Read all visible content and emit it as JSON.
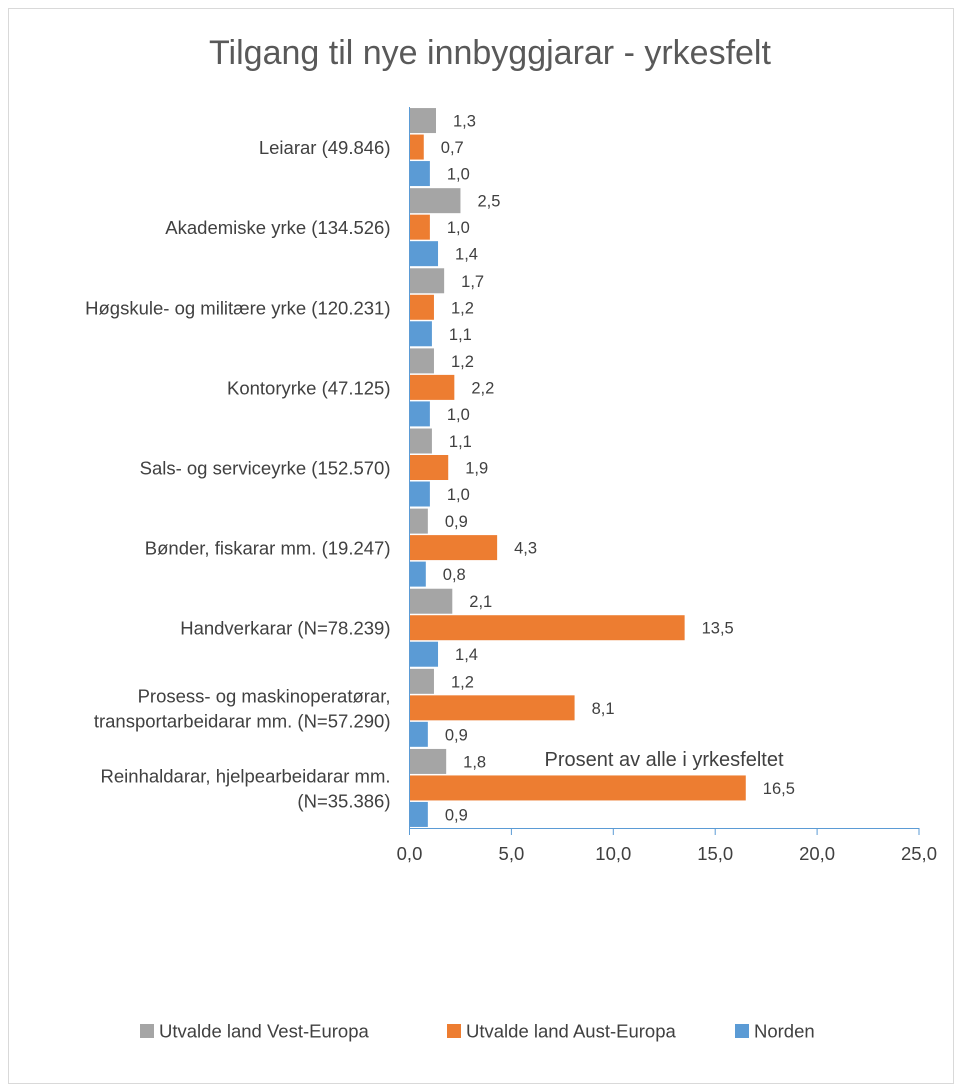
{
  "chart_data": {
    "type": "bar",
    "orientation": "horizontal",
    "title": "Tilgang til nye innbyggjarar - yrkesfelt",
    "xlabel": "Prosent av alle i yrkesfeltet",
    "ylabel": "",
    "xlim": [
      0,
      25
    ],
    "x_ticks": [
      "0,0",
      "5,0",
      "10,0",
      "15,0",
      "20,0",
      "25,0"
    ],
    "grid": false,
    "legend_position": "bottom",
    "categories": [
      [
        "Leiarar (49.846)"
      ],
      [
        "Akademiske yrke (134.526)"
      ],
      [
        "Høgskule- og militære yrke (120.231)"
      ],
      [
        "Kontoryrke (47.125)"
      ],
      [
        "Sals- og serviceyrke (152.570)"
      ],
      [
        "Bønder, fiskarar mm. (19.247)"
      ],
      [
        "Handverkarar (N=78.239)"
      ],
      [
        "Prosess- og maskinoperatørar,",
        "transportarbeidarar mm. (N=57.290)"
      ],
      [
        "Reinhaldarar, hjelpearbeidarar mm.",
        "(N=35.386)"
      ]
    ],
    "series": [
      {
        "name": "Utvalde land Vest-Europa",
        "color": "#a5a5a5",
        "values": [
          1.3,
          2.5,
          1.7,
          1.2,
          1.1,
          0.9,
          2.1,
          1.2,
          1.8
        ],
        "labels": [
          "1,3",
          "2,5",
          "1,7",
          "1,2",
          "1,1",
          "0,9",
          "2,1",
          "1,2",
          "1,8"
        ]
      },
      {
        "name": "Utvalde land Aust-Europa",
        "color": "#ed7d31",
        "values": [
          0.7,
          1.0,
          1.2,
          2.2,
          1.9,
          4.3,
          13.5,
          8.1,
          16.5
        ],
        "labels": [
          "0,7",
          "1,0",
          "1,2",
          "2,2",
          "1,9",
          "4,3",
          "13,5",
          "8,1",
          "16,5"
        ]
      },
      {
        "name": "Norden",
        "color": "#5b9bd5",
        "values": [
          1.0,
          1.4,
          1.1,
          1.0,
          1.0,
          0.8,
          1.4,
          0.9,
          0.9
        ],
        "labels": [
          "1,0",
          "1,4",
          "1,1",
          "1,0",
          "1,0",
          "0,8",
          "1,4",
          "0,9",
          "0,9"
        ]
      }
    ]
  }
}
